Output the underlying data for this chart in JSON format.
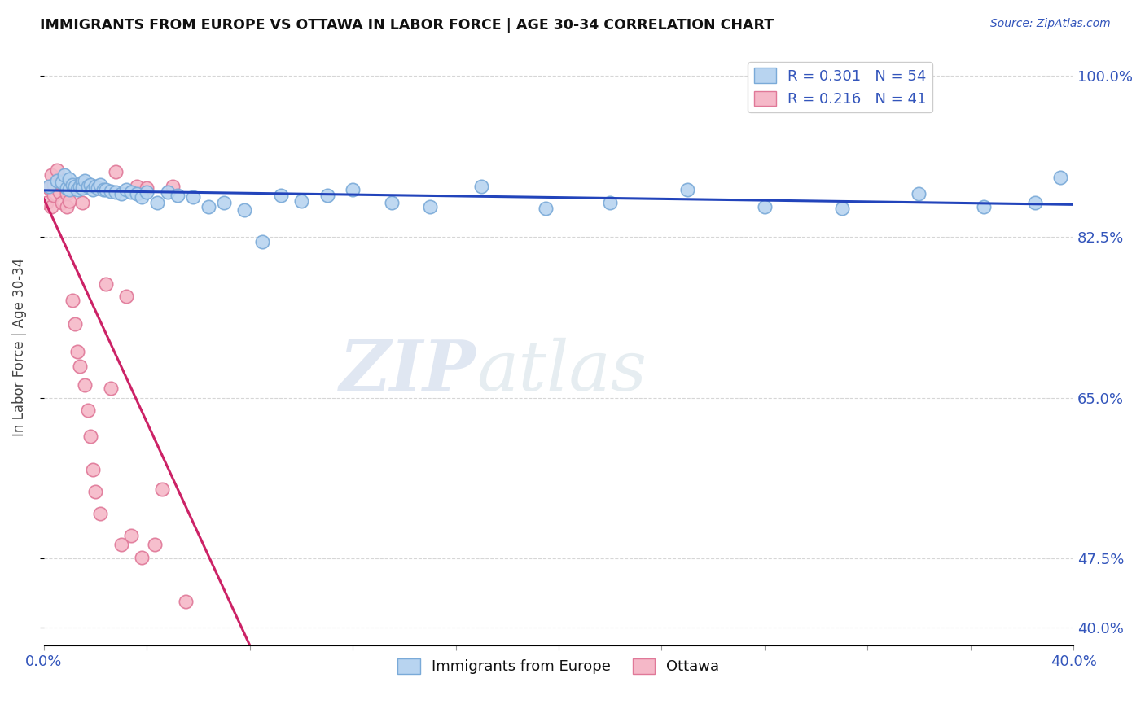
{
  "title": "IMMIGRANTS FROM EUROPE VS OTTAWA IN LABOR FORCE | AGE 30-34 CORRELATION CHART",
  "source_text": "Source: ZipAtlas.com",
  "ylabel": "In Labor Force | Age 30-34",
  "xlim": [
    0.0,
    0.4
  ],
  "ylim": [
    0.38,
    1.03
  ],
  "xticks": [
    0.0,
    0.04,
    0.08,
    0.12,
    0.16,
    0.2,
    0.24,
    0.28,
    0.32,
    0.36,
    0.4
  ],
  "ytick_labels_right": [
    "40.0%",
    "47.5%",
    "65.0%",
    "82.5%",
    "100.0%"
  ],
  "yticks_right": [
    0.4,
    0.475,
    0.65,
    0.825,
    1.0
  ],
  "blue_R": 0.301,
  "blue_N": 54,
  "pink_R": 0.216,
  "pink_N": 41,
  "blue_color": "#b8d4f0",
  "blue_edge_color": "#7aaad8",
  "pink_color": "#f5b8c8",
  "pink_edge_color": "#e07898",
  "blue_trend_color": "#2244bb",
  "pink_trend_color": "#cc2266",
  "legend_label_blue": "Immigrants from Europe",
  "legend_label_pink": "Ottawa",
  "watermark_zip": "ZIP",
  "watermark_atlas": "atlas",
  "blue_x": [
    0.002,
    0.005,
    0.007,
    0.008,
    0.009,
    0.01,
    0.01,
    0.011,
    0.012,
    0.013,
    0.014,
    0.015,
    0.015,
    0.016,
    0.017,
    0.018,
    0.019,
    0.02,
    0.021,
    0.022,
    0.023,
    0.024,
    0.026,
    0.028,
    0.03,
    0.032,
    0.034,
    0.036,
    0.038,
    0.04,
    0.044,
    0.048,
    0.052,
    0.058,
    0.064,
    0.07,
    0.078,
    0.085,
    0.092,
    0.1,
    0.11,
    0.12,
    0.135,
    0.15,
    0.17,
    0.195,
    0.22,
    0.25,
    0.28,
    0.31,
    0.34,
    0.365,
    0.385,
    0.395
  ],
  "blue_y": [
    0.88,
    0.886,
    0.884,
    0.892,
    0.878,
    0.888,
    0.876,
    0.882,
    0.88,
    0.876,
    0.88,
    0.884,
    0.878,
    0.886,
    0.88,
    0.882,
    0.876,
    0.88,
    0.878,
    0.882,
    0.876,
    0.876,
    0.875,
    0.874,
    0.872,
    0.876,
    0.874,
    0.872,
    0.868,
    0.874,
    0.862,
    0.874,
    0.87,
    0.868,
    0.858,
    0.862,
    0.854,
    0.82,
    0.87,
    0.864,
    0.87,
    0.876,
    0.862,
    0.858,
    0.88,
    0.856,
    0.862,
    0.876,
    0.858,
    0.856,
    0.872,
    0.858,
    0.862,
    0.89
  ],
  "pink_x": [
    0.001,
    0.002,
    0.003,
    0.003,
    0.004,
    0.004,
    0.005,
    0.006,
    0.006,
    0.007,
    0.007,
    0.008,
    0.009,
    0.009,
    0.01,
    0.01,
    0.011,
    0.012,
    0.013,
    0.014,
    0.015,
    0.016,
    0.017,
    0.018,
    0.019,
    0.02,
    0.021,
    0.022,
    0.024,
    0.026,
    0.028,
    0.03,
    0.032,
    0.034,
    0.036,
    0.038,
    0.04,
    0.043,
    0.046,
    0.05,
    0.055
  ],
  "pink_y": [
    0.862,
    0.878,
    0.892,
    0.858,
    0.882,
    0.87,
    0.898,
    0.884,
    0.874,
    0.882,
    0.862,
    0.88,
    0.872,
    0.858,
    0.878,
    0.864,
    0.756,
    0.73,
    0.7,
    0.684,
    0.862,
    0.664,
    0.636,
    0.608,
    0.572,
    0.548,
    0.878,
    0.524,
    0.774,
    0.66,
    0.896,
    0.49,
    0.76,
    0.5,
    0.88,
    0.476,
    0.878,
    0.49,
    0.55,
    0.88,
    0.428
  ]
}
